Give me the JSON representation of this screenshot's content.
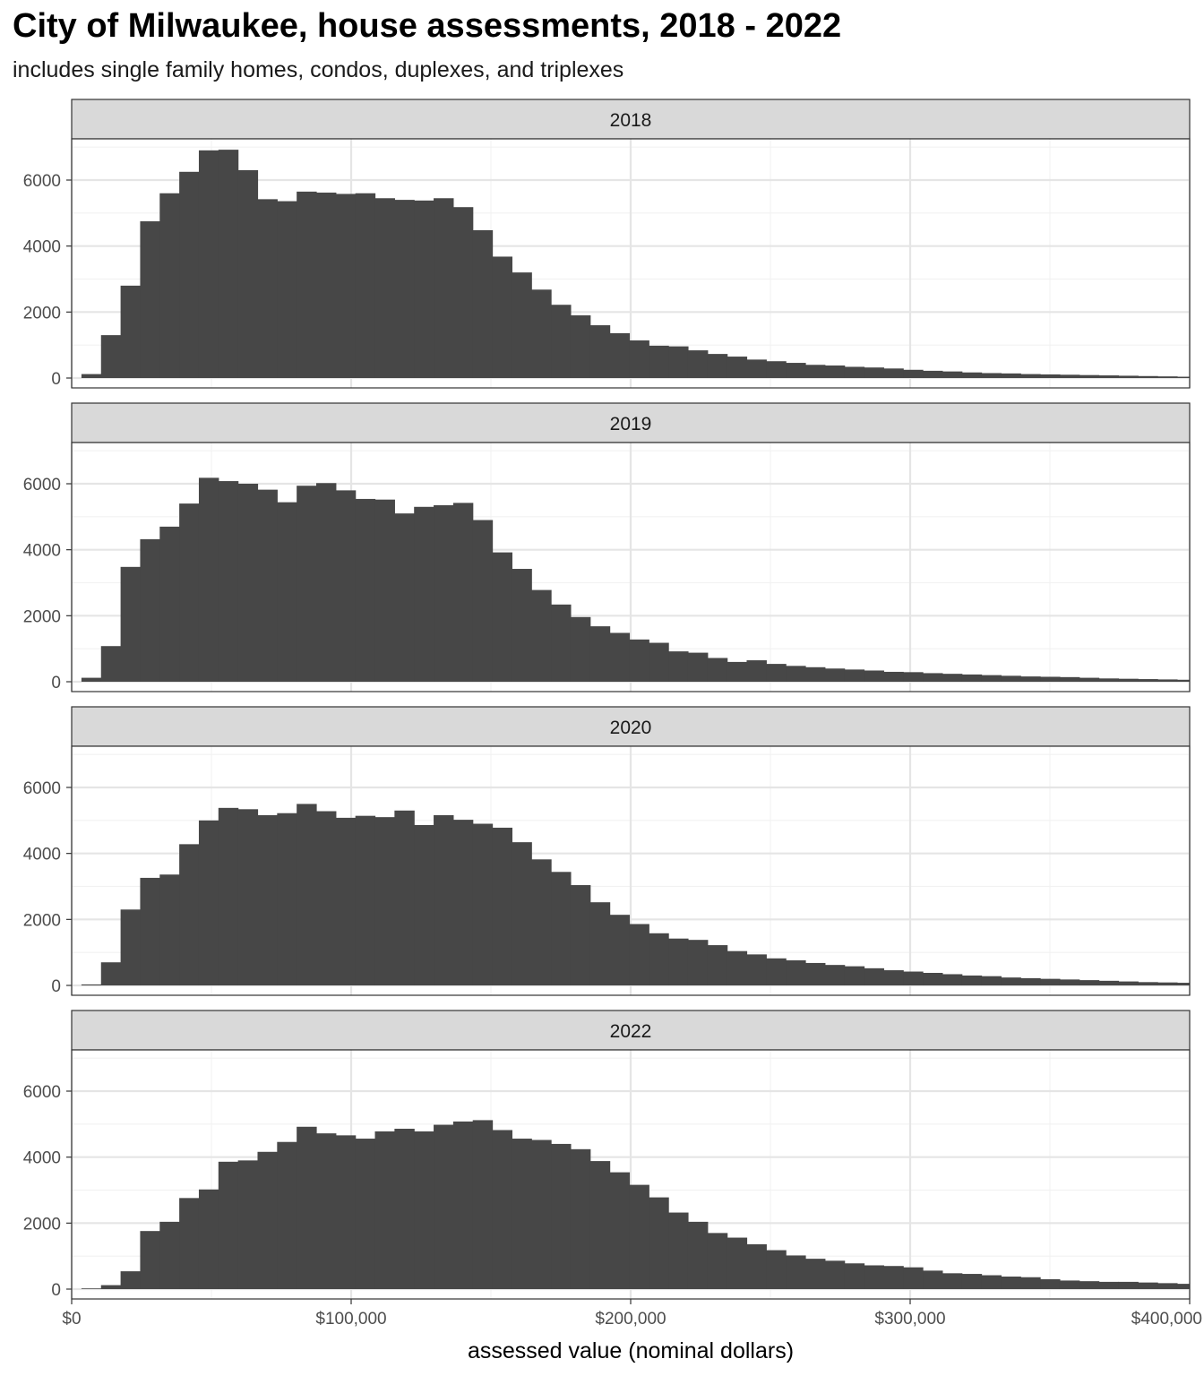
{
  "title": "City of Milwaukee, house assessments, 2018 - 2022",
  "subtitle": "includes single family homes, condos, duplexes, and triplexes",
  "colors": {
    "bar": "#474747",
    "strip_fill": "#d9d9d9",
    "grid_major": "#e5e5e5",
    "grid_minor": "#f2f2f2",
    "border": "#333333"
  },
  "chart_data": {
    "type": "bar",
    "facet_labels": [
      "2018",
      "2019",
      "2020",
      "2022"
    ],
    "xlabel": "assessed value (nominal dollars)",
    "ylabel": "",
    "xlim": [
      0,
      400000
    ],
    "ylim": [
      0,
      7200
    ],
    "x_ticks": [
      0,
      100000,
      200000,
      300000,
      400000
    ],
    "x_tick_labels": [
      "$0",
      "$100,000",
      "$200,000",
      "$300,000",
      "$400,000"
    ],
    "y_ticks": [
      0,
      2000,
      4000,
      6000
    ],
    "y_tick_labels": [
      "0",
      "2000",
      "4000",
      "6000"
    ],
    "grid": true,
    "bin_width": 7000,
    "bin_starts": [
      3500,
      10500,
      17500,
      24500,
      31500,
      38500,
      45500,
      52500,
      59500,
      66500,
      73500,
      80500,
      87500,
      94500,
      101500,
      108500,
      115500,
      122500,
      129500,
      136500,
      143500,
      150500,
      157500,
      164500,
      171500,
      178500,
      185500,
      192500,
      199500,
      206500,
      213500,
      220500,
      227500,
      234500,
      241500,
      248500,
      255500,
      262500,
      269500,
      276500,
      283500,
      290500,
      297500,
      304500,
      311500,
      318500,
      325500,
      332500,
      339500,
      346500,
      353500,
      360500,
      367500,
      374500,
      381500,
      388500,
      395500
    ],
    "series": [
      {
        "name": "2018",
        "values": [
          120,
          1300,
          2800,
          4750,
          5600,
          6250,
          6900,
          6920,
          6300,
          5420,
          5360,
          5650,
          5620,
          5580,
          5600,
          5450,
          5400,
          5380,
          5450,
          5180,
          4480,
          3680,
          3200,
          2680,
          2220,
          1900,
          1600,
          1360,
          1140,
          980,
          960,
          840,
          730,
          650,
          560,
          510,
          460,
          400,
          380,
          340,
          320,
          290,
          250,
          220,
          200,
          170,
          150,
          140,
          120,
          110,
          100,
          90,
          80,
          70,
          60,
          50,
          40
        ]
      },
      {
        "name": "2019",
        "values": [
          120,
          1080,
          3480,
          4320,
          4700,
          5400,
          6180,
          6080,
          6000,
          5820,
          5440,
          5940,
          6020,
          5800,
          5540,
          5520,
          5100,
          5300,
          5350,
          5420,
          4900,
          3920,
          3420,
          2780,
          2340,
          1960,
          1680,
          1480,
          1280,
          1180,
          920,
          880,
          720,
          600,
          650,
          540,
          480,
          440,
          400,
          370,
          340,
          300,
          290,
          260,
          240,
          220,
          200,
          180,
          160,
          150,
          140,
          120,
          100,
          90,
          80,
          70,
          60
        ]
      },
      {
        "name": "2020",
        "values": [
          30,
          700,
          2300,
          3260,
          3360,
          4280,
          5000,
          5380,
          5340,
          5160,
          5220,
          5500,
          5280,
          5080,
          5140,
          5100,
          5300,
          4860,
          5160,
          5020,
          4900,
          4780,
          4340,
          3820,
          3440,
          3040,
          2520,
          2140,
          1860,
          1580,
          1420,
          1380,
          1220,
          1040,
          940,
          820,
          760,
          680,
          620,
          580,
          520,
          460,
          420,
          380,
          340,
          300,
          280,
          240,
          220,
          200,
          180,
          160,
          140,
          120,
          100,
          90,
          80
        ]
      },
      {
        "name": "2022",
        "values": [
          20,
          120,
          540,
          1760,
          2040,
          2760,
          3020,
          3860,
          3900,
          4160,
          4460,
          4920,
          4720,
          4660,
          4560,
          4780,
          4860,
          4780,
          4980,
          5080,
          5120,
          4820,
          4560,
          4520,
          4400,
          4240,
          3880,
          3540,
          3160,
          2780,
          2320,
          2040,
          1700,
          1560,
          1360,
          1180,
          1020,
          920,
          860,
          780,
          720,
          700,
          660,
          560,
          480,
          460,
          420,
          380,
          360,
          300,
          260,
          240,
          220,
          220,
          200,
          180,
          160
        ]
      }
    ]
  }
}
